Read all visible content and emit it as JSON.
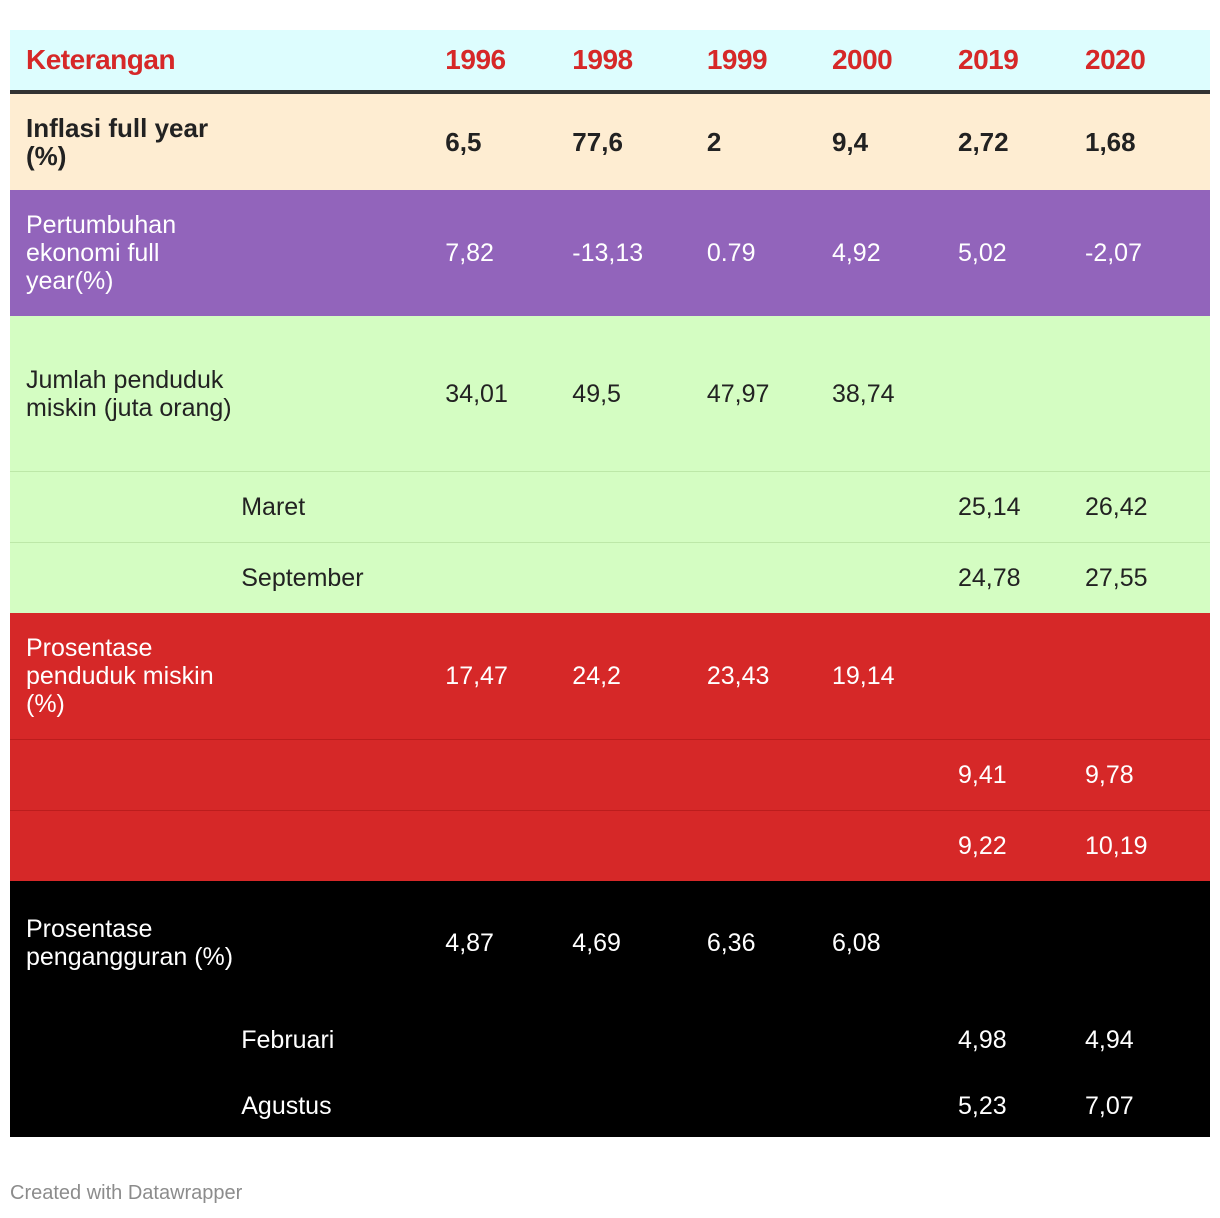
{
  "table": {
    "headers": [
      "Keterangan",
      "",
      "1996",
      "1998",
      "1999",
      "2000",
      "2019",
      "2020"
    ],
    "rows": [
      {
        "label": "Inflasi full year (%)",
        "sub": "",
        "values": [
          "6,5",
          "77,6",
          "2",
          "9,4",
          "2,72",
          "1,68"
        ]
      },
      {
        "label": "Pertumbuhan ekonomi full year(%)",
        "sub": "",
        "values": [
          "7,82",
          "-13,13",
          "0.79",
          "4,92",
          "5,02",
          "-2,07"
        ]
      },
      {
        "label": "Jumlah penduduk miskin (juta orang)",
        "sub": "",
        "values": [
          "34,01",
          "49,5",
          "47,97",
          "38,74",
          "",
          ""
        ]
      },
      {
        "label": "",
        "sub": "Maret",
        "values": [
          "",
          "",
          "",
          "",
          "25,14",
          "26,42"
        ]
      },
      {
        "label": "",
        "sub": "September",
        "values": [
          "",
          "",
          "",
          "",
          "24,78",
          "27,55"
        ]
      },
      {
        "label": "Prosentase penduduk miskin (%)",
        "sub": "",
        "values": [
          "17,47",
          "24,2",
          "23,43",
          "19,14",
          "",
          ""
        ]
      },
      {
        "label": "",
        "sub": "",
        "values": [
          "",
          "",
          "",
          "",
          "9,41",
          "9,78"
        ]
      },
      {
        "label": "",
        "sub": "",
        "values": [
          "",
          "",
          "",
          "",
          "9,22",
          "10,19"
        ]
      },
      {
        "label": "Prosentase pengangguran (%)",
        "sub": "",
        "values": [
          "4,87",
          "4,69",
          "6,36",
          "6,08",
          "",
          ""
        ]
      },
      {
        "label": "",
        "sub": "Februari",
        "values": [
          "",
          "",
          "",
          "",
          "4,98",
          "4,94"
        ]
      },
      {
        "label": "",
        "sub": "Agustus",
        "values": [
          "",
          "",
          "",
          "",
          "5,23",
          "7,07"
        ]
      }
    ]
  },
  "chart_data": {
    "type": "table",
    "title": "",
    "columns": [
      "Keterangan",
      "",
      "1996",
      "1998",
      "1999",
      "2000",
      "2019",
      "2020"
    ],
    "row_colors": [
      "#feedd2",
      "#9264bb",
      "#d4fdc2",
      "#d4fdc2",
      "#d4fdc2",
      "#d62828",
      "#d62828",
      "#d62828",
      "#000000",
      "#000000",
      "#000000"
    ],
    "header_color": "#ddfdfe",
    "header_text_color": "#d62828"
  },
  "footer": {
    "credit": "Created with Datawrapper"
  }
}
